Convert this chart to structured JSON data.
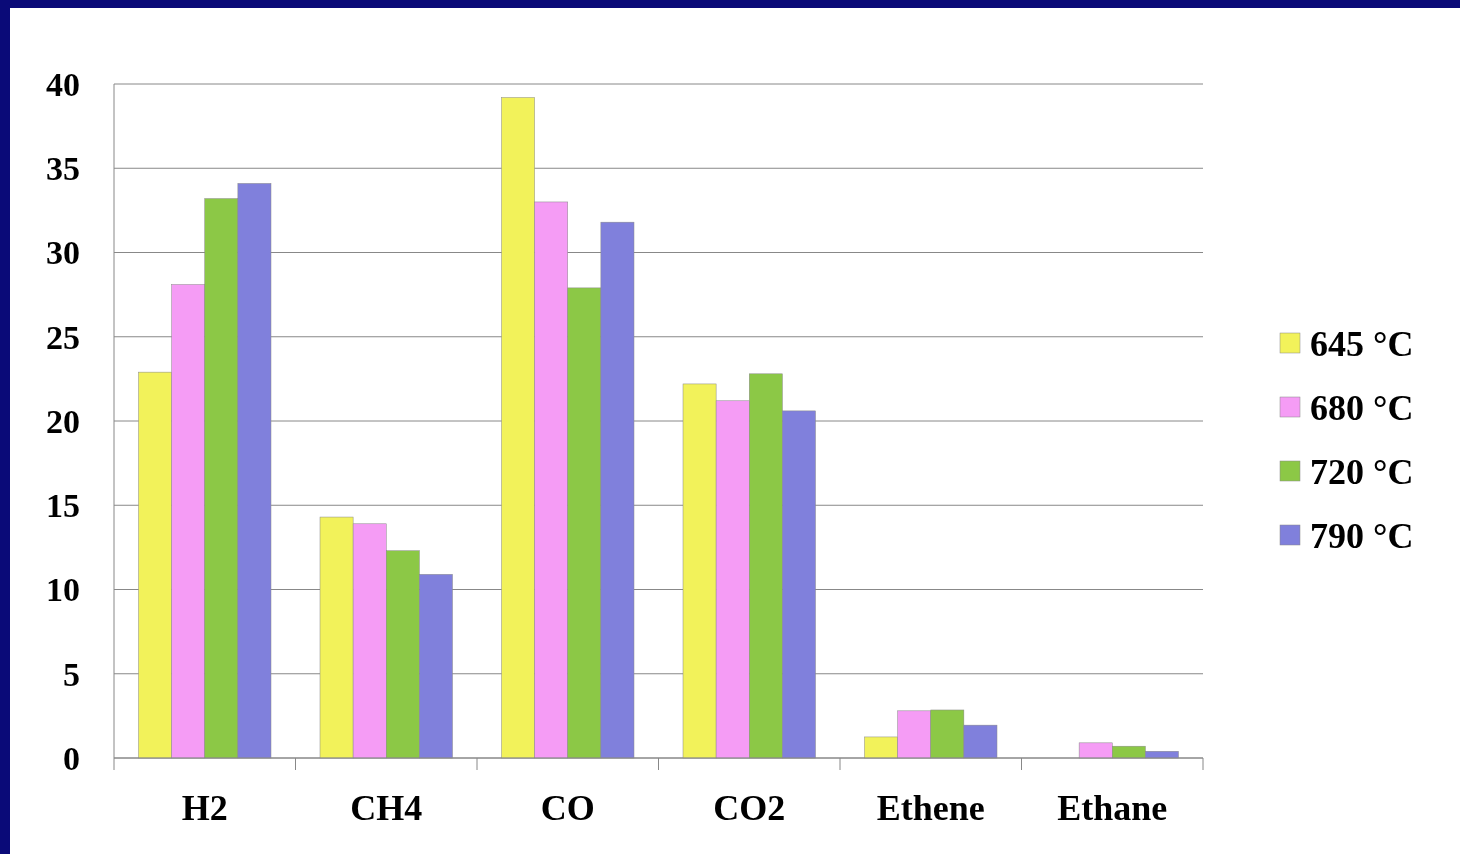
{
  "chart_data": {
    "type": "bar",
    "categories": [
      "H2",
      "CH4",
      "CO",
      "CO2",
      "Ethene",
      "Ethane"
    ],
    "series": [
      {
        "name": "645 °C",
        "color": "#f2f25a",
        "values": [
          22.9,
          14.3,
          39.2,
          22.2,
          1.25,
          null
        ]
      },
      {
        "name": "680 °C",
        "color": "#f59cf5",
        "values": [
          28.1,
          13.9,
          33.0,
          21.2,
          2.8,
          0.9
        ]
      },
      {
        "name": "720 °C",
        "color": "#8cc846",
        "values": [
          33.2,
          12.3,
          27.9,
          22.8,
          2.85,
          0.7
        ]
      },
      {
        "name": "790 °C",
        "color": "#8080dc",
        "values": [
          34.1,
          10.9,
          31.8,
          20.6,
          1.95,
          0.4
        ]
      }
    ],
    "ylim": [
      0,
      40
    ],
    "yticks": [
      0,
      5,
      10,
      15,
      20,
      25,
      30,
      35,
      40
    ],
    "grid": "y",
    "legend": "right"
  }
}
